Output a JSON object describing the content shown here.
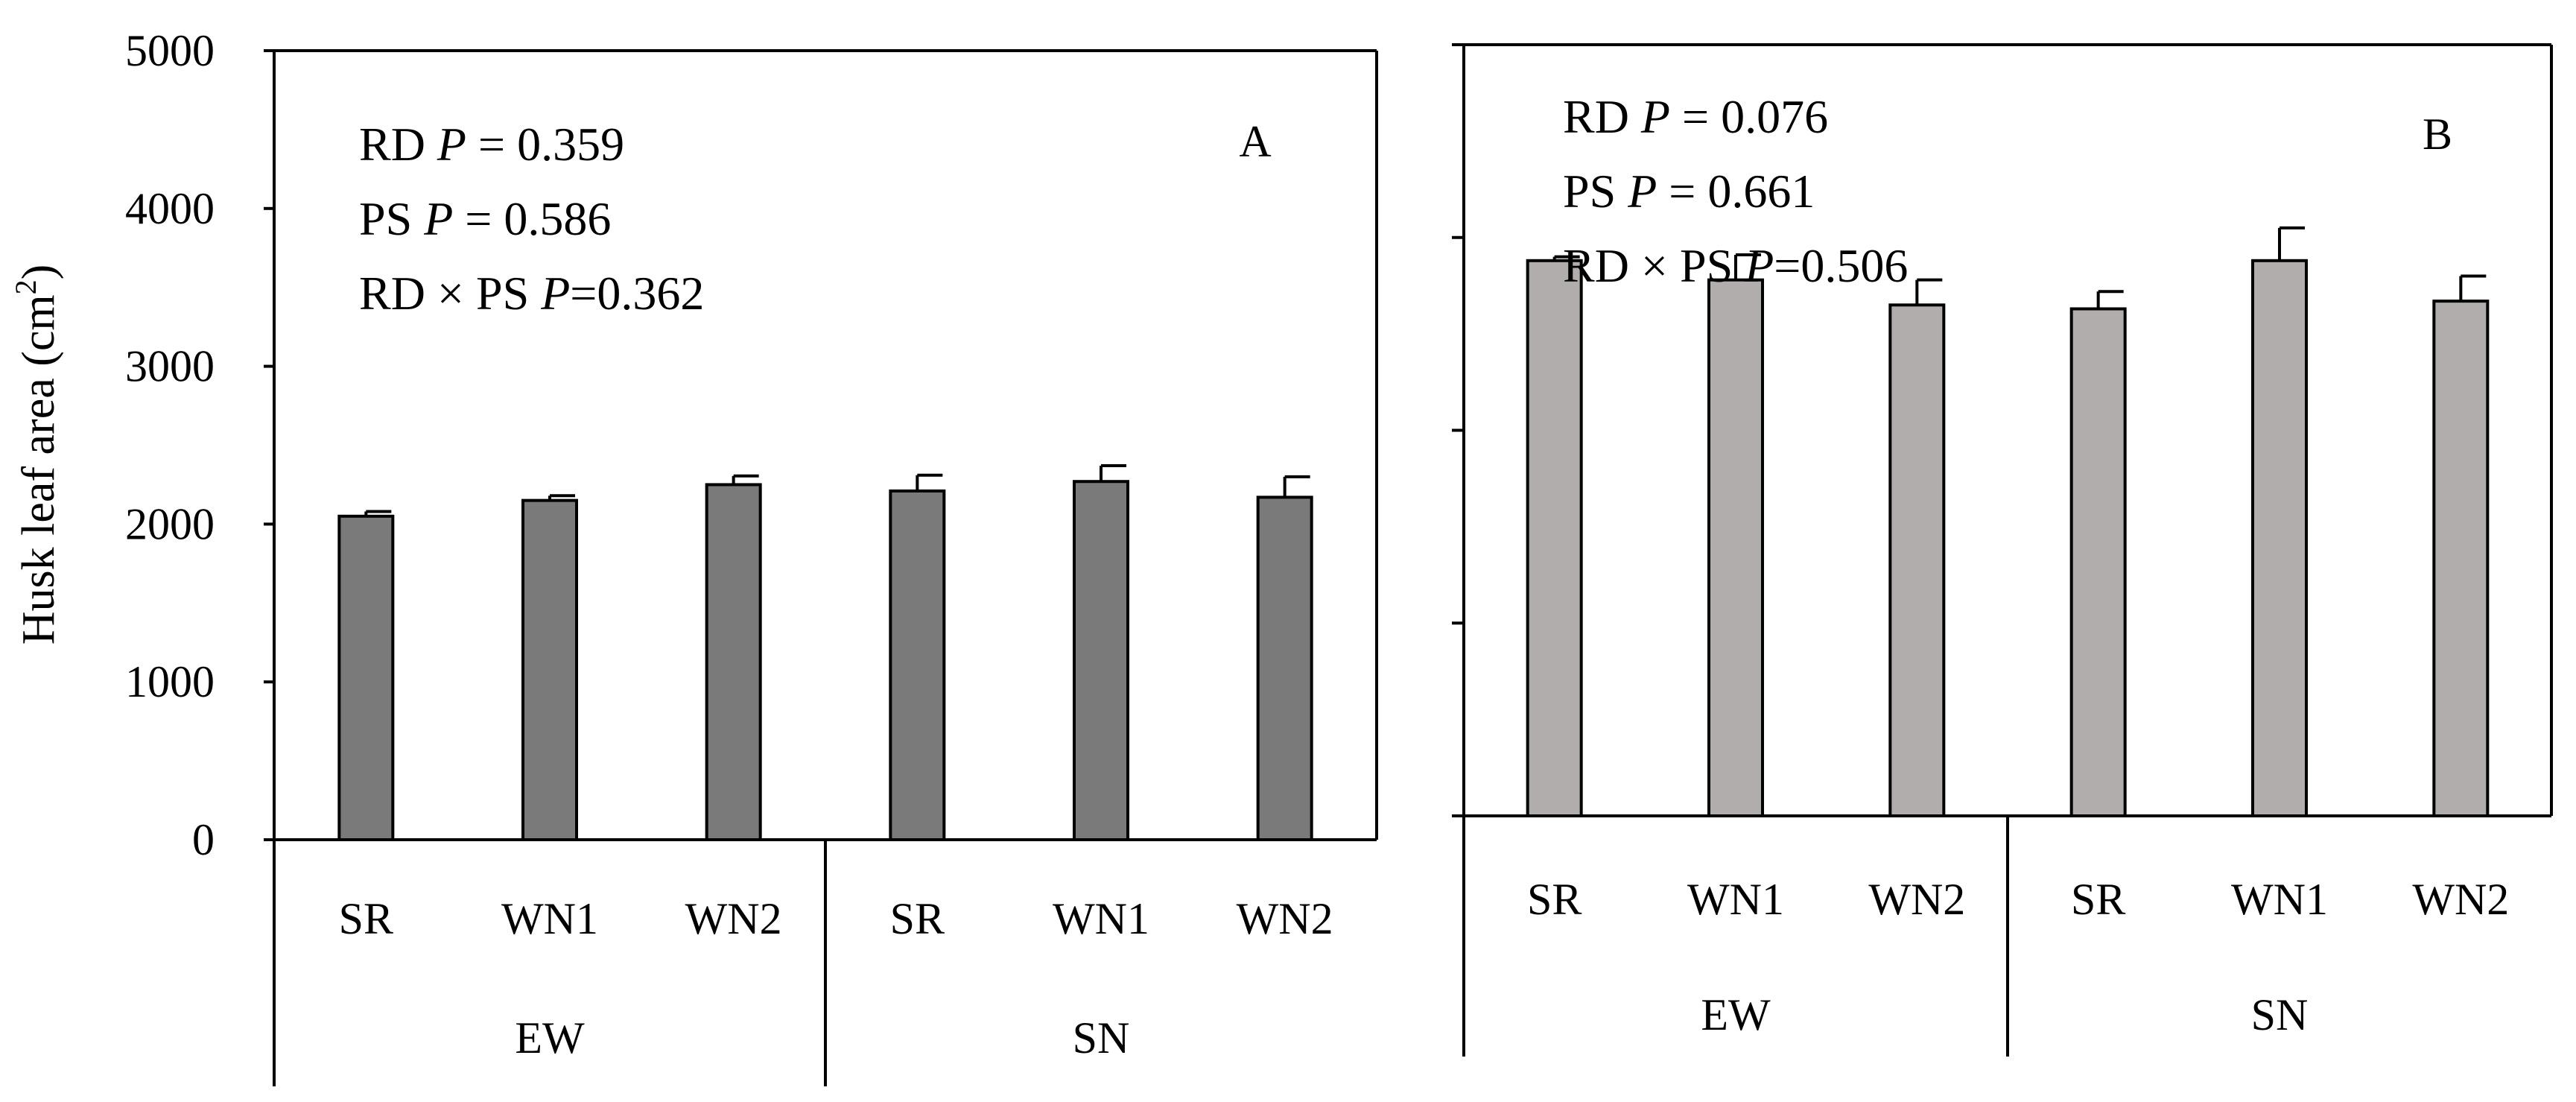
{
  "colors": {
    "panel_a_bar": "#7a7a7a",
    "panel_b_bar": "#b0adac",
    "axis": "#000000"
  },
  "ylabel_main": "Husk leaf area (cm",
  "ylabel_sup": "2",
  "ylabel_close": ")",
  "chart_data": [
    {
      "panel": "A",
      "type": "bar",
      "ylabel": "Husk leaf area (cm2)",
      "ylim": [
        0,
        5000
      ],
      "yticks": [
        0,
        1000,
        2000,
        3000,
        4000,
        5000
      ],
      "ytick_labels": [
        "0",
        "1000",
        "2000",
        "3000",
        "4000",
        "5000"
      ],
      "categories": [
        "SR",
        "WN1",
        "WN2",
        "SR",
        "WN1",
        "WN2"
      ],
      "groups": [
        "EW",
        "SN"
      ],
      "values": [
        2050,
        2150,
        2250,
        2210,
        2270,
        2170
      ],
      "errors": [
        30,
        30,
        55,
        100,
        100,
        130
      ],
      "stats": [
        {
          "prefix": "RD ",
          "p": "P",
          "value": " = 0.359"
        },
        {
          "prefix": "PS ",
          "p": "P",
          "value": " = 0.586"
        },
        {
          "prefix": "RD × PS ",
          "p": "P",
          "value": "=0.362"
        }
      ]
    },
    {
      "panel": "B",
      "type": "bar",
      "ylim": [
        0,
        4000
      ],
      "yticks": [
        0,
        1000,
        2000,
        3000,
        4000
      ],
      "ytick_labels": [],
      "categories": [
        "SR",
        "WN1",
        "WN2",
        "SR",
        "WN1",
        "WN2"
      ],
      "groups": [
        "EW",
        "SN"
      ],
      "values": [
        2880,
        2780,
        2650,
        2630,
        2880,
        2670
      ],
      "errors": [
        20,
        130,
        130,
        90,
        170,
        130
      ],
      "stats": [
        {
          "prefix": "RD ",
          "p": "P",
          "value": " = 0.076"
        },
        {
          "prefix": "PS ",
          "p": "P",
          "value": " = 0.661"
        },
        {
          "prefix": "RD × PS ",
          "p": "P",
          "value": "=0.506"
        }
      ]
    }
  ]
}
